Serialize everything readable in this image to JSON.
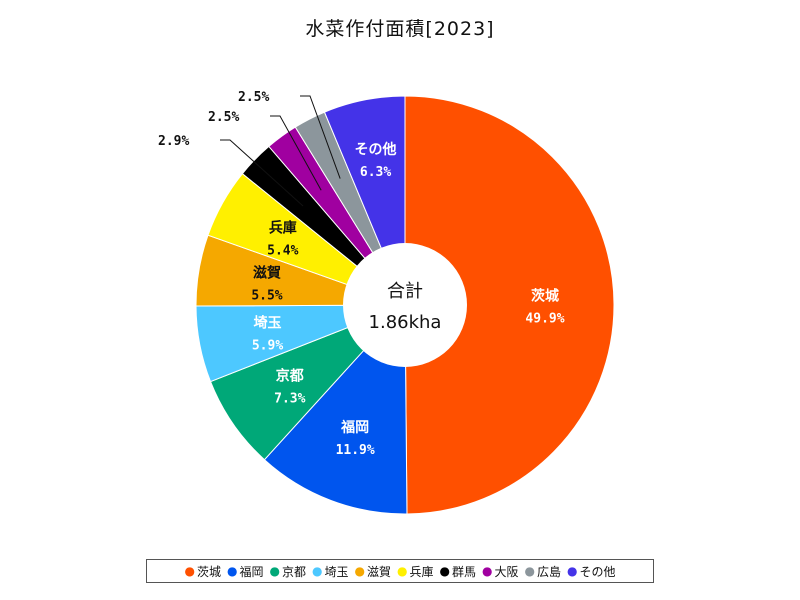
{
  "chart_data": {
    "type": "pie",
    "title": "水菜作付面積[2023]",
    "center_label": {
      "line1": "合計",
      "line2": "1.86kha"
    },
    "slices": [
      {
        "name": "茨城",
        "value": 49.9,
        "label": "49.9%",
        "color": "#FF5000"
      },
      {
        "name": "福岡",
        "value": 11.9,
        "label": "11.9%",
        "color": "#0055EE"
      },
      {
        "name": "京都",
        "value": 7.3,
        "label": "7.3%",
        "color": "#00A878"
      },
      {
        "name": "埼玉",
        "value": 5.9,
        "label": "5.9%",
        "color": "#4DC8FF"
      },
      {
        "name": "滋賀",
        "value": 5.5,
        "label": "5.5%",
        "color": "#F5A800"
      },
      {
        "name": "兵庫",
        "value": 5.4,
        "label": "5.4%",
        "color": "#FFF000"
      },
      {
        "name": "群馬",
        "value": 2.9,
        "label": "2.9%",
        "color": "#000000"
      },
      {
        "name": "大阪",
        "value": 2.5,
        "label": "2.5%",
        "color": "#A000A0"
      },
      {
        "name": "広島",
        "value": 2.5,
        "label": "2.5%",
        "color": "#8C969C"
      },
      {
        "name": "その他",
        "value": 6.3,
        "label": "6.3%",
        "color": "#4433E8"
      }
    ],
    "legend_position": "bottom"
  }
}
